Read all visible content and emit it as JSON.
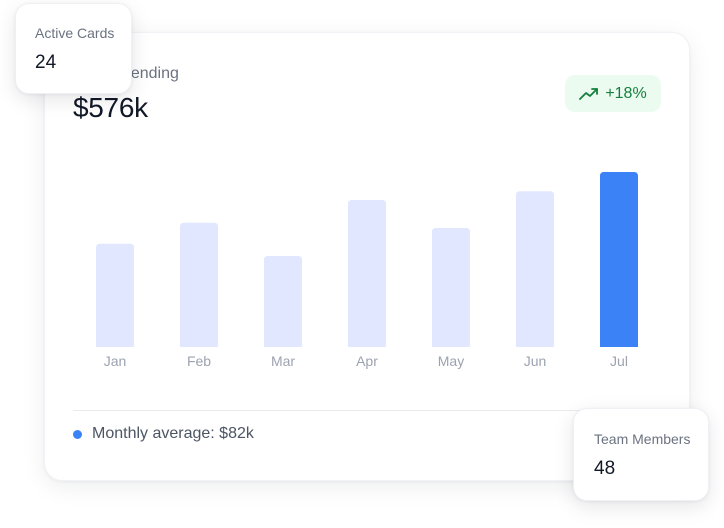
{
  "card": {
    "label": "Total Spending",
    "value": "$576k",
    "trend": {
      "value": "+18%",
      "icon": "trending-up-icon",
      "color": "#15803d",
      "background": "#ecfbf0"
    }
  },
  "footer": {
    "text": "Monthly average: $82k",
    "dot_color": "#3b82f6"
  },
  "active_cards": {
    "label": "Active Cards",
    "value": "24"
  },
  "team_members": {
    "label": "Team Members",
    "value": "48"
  },
  "chart_data": {
    "type": "bar",
    "categories": [
      "Jan",
      "Feb",
      "Mar",
      "Apr",
      "May",
      "Jun",
      "Jul"
    ],
    "values": [
      59,
      71,
      52,
      84,
      68,
      89,
      100
    ],
    "highlight_index": 6,
    "colors": {
      "bar": "#e0e7ff",
      "highlight": "#3b82f6"
    },
    "ylim": [
      0,
      100
    ],
    "grid": false,
    "xlabel": "",
    "ylabel": ""
  }
}
